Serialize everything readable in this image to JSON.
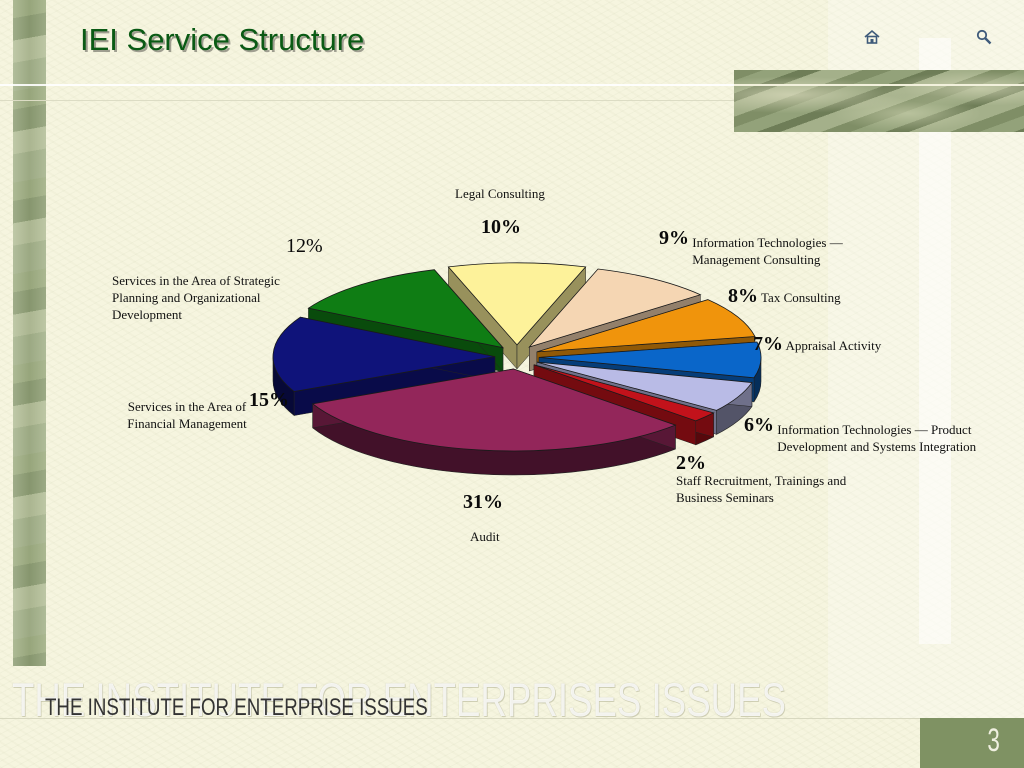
{
  "slide": {
    "title": "IEI Service Structure",
    "org_name": "THE INSTITUTE FOR ENTERPRISE ISSUES",
    "watermark": "THE INSTITUTE FOR ENTERPRISES ISSUES",
    "page_number": "3",
    "nav": {
      "home_icon": "home-icon",
      "search_icon": "search-icon"
    }
  },
  "chart_data": {
    "type": "pie",
    "title": "",
    "slices": [
      {
        "label": "Legal Consulting",
        "value": 10,
        "display": "10%",
        "color": "#fdf29a"
      },
      {
        "label": "Information Technologies — Management Consulting",
        "value": 9,
        "display": "9%",
        "color": "#f5d6b3"
      },
      {
        "label": "Tax Consulting",
        "value": 8,
        "display": "8%",
        "color": "#f0940c"
      },
      {
        "label": "Appraisal Activity",
        "value": 7,
        "display": "7%",
        "color": "#0a66c9"
      },
      {
        "label": "Information Technologies — Product Development and  Systems Integration",
        "value": 6,
        "display": "6%",
        "color": "#b9bbe6"
      },
      {
        "label": "Staff Recruitment, Trainings and Business Seminars",
        "value": 2,
        "display": "2%",
        "color": "#c2121b"
      },
      {
        "label": "Audit",
        "value": 31,
        "display": "31%",
        "color": "#93265a"
      },
      {
        "label": "Services in the Area of Financial Management",
        "value": 15,
        "display": "15%",
        "color": "#0f137a"
      },
      {
        "label": "Services in the Area of Strategic Planning and Organizational Development",
        "value": 12,
        "display": "12%",
        "color": "#0f7d14"
      }
    ]
  }
}
